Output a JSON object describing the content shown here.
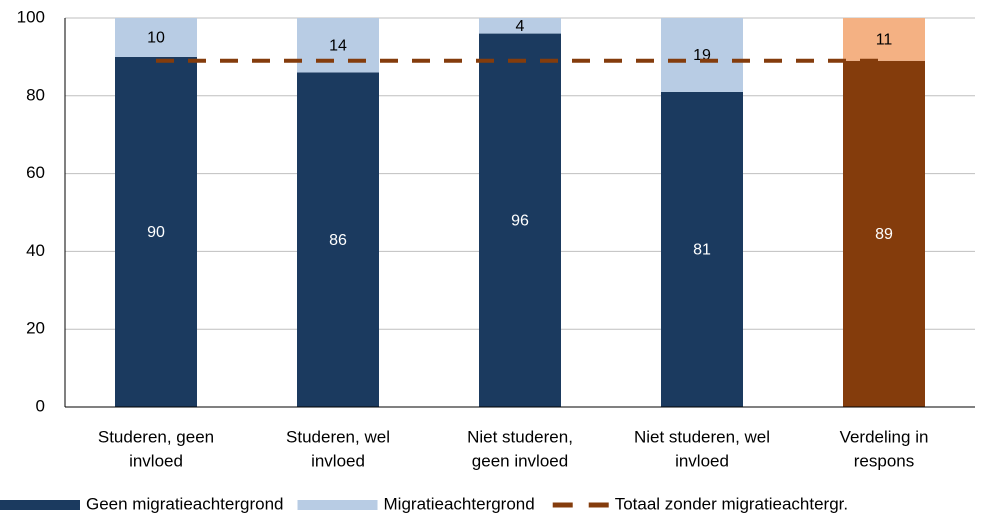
{
  "chart_data": {
    "type": "stacked-bar",
    "categories": [
      [
        "Studeren, geen",
        "invloed"
      ],
      [
        "Studeren, wel",
        "invloed"
      ],
      [
        "Niet studeren,",
        "geen invloed"
      ],
      [
        "Niet studeren, wel",
        "invloed"
      ],
      [
        "Verdeling in",
        "respons"
      ]
    ],
    "series": [
      {
        "name": "Geen migratieachtergrond",
        "colors": [
          "#1b3a5f",
          "#1b3a5f",
          "#1b3a5f",
          "#1b3a5f",
          "#843c0c"
        ],
        "label_color": "#ffffff",
        "values": [
          90,
          86,
          96,
          81,
          89
        ]
      },
      {
        "name": "Migratieachtergrond",
        "colors": [
          "#b8cce4",
          "#b8cce4",
          "#b8cce4",
          "#b8cce4",
          "#f4b183"
        ],
        "label_color": "#000000",
        "values": [
          10,
          14,
          4,
          19,
          11
        ]
      },
      {
        "name": "Totaal zonder migratieachtergr.",
        "type": "line",
        "dashed": true,
        "color": "#843c0c",
        "values": [
          89,
          89,
          89,
          89,
          89
        ]
      }
    ],
    "ylim": [
      0,
      100
    ],
    "yticks": [
      0,
      20,
      40,
      60,
      80,
      100
    ],
    "grid": true,
    "legend": "bottom"
  }
}
